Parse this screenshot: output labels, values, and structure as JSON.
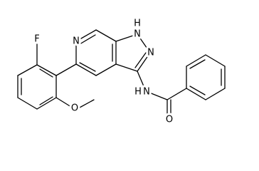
{
  "atoms": {
    "fluorine": "F",
    "pyridine_n": "N",
    "pyrazole_nh_n": "N",
    "pyrazole_nh_h": "H",
    "pyrazole_n": "N",
    "amide_n": "N",
    "amide_h": "H",
    "carbonyl_o": "O",
    "methoxy_o": "O"
  }
}
